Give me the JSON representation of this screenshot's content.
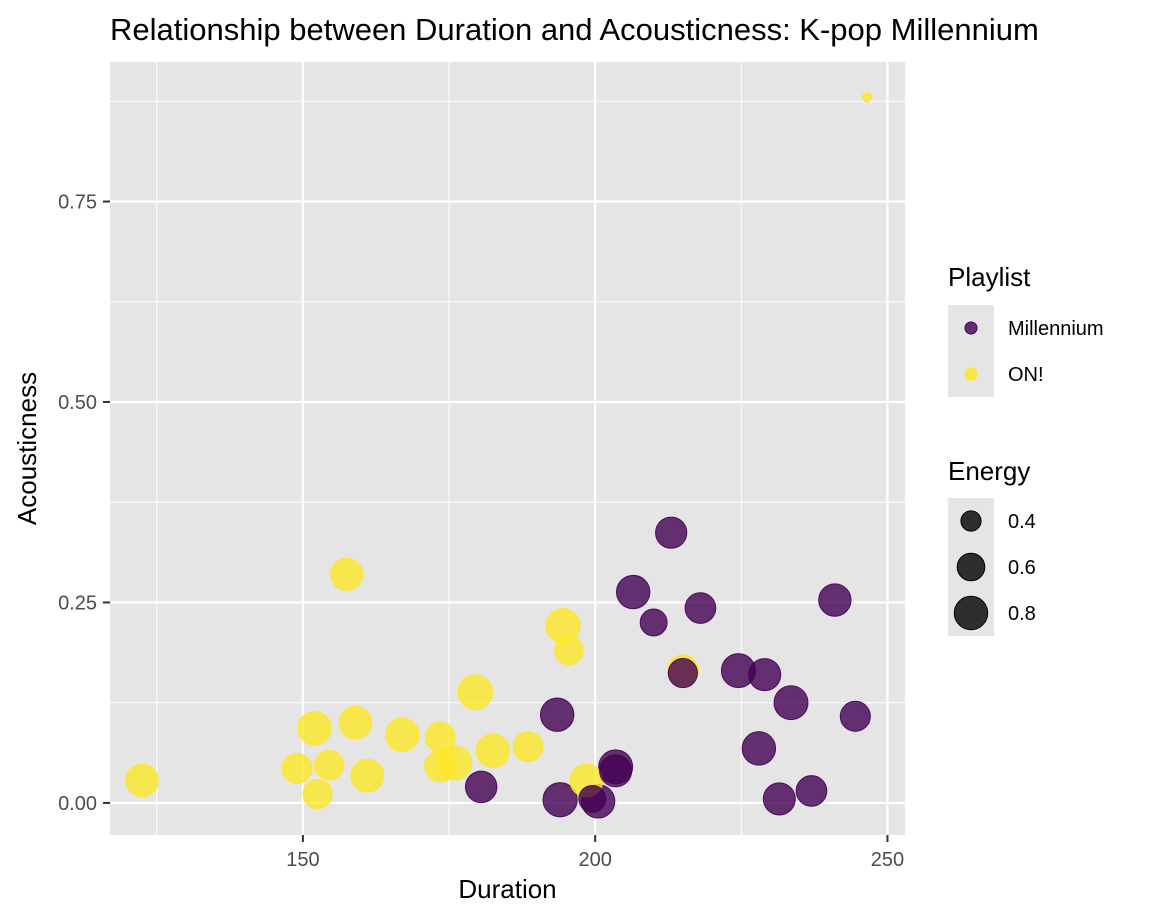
{
  "chart_data": {
    "type": "scatter",
    "title": "Relationship between Duration and Acousticness: K-pop Millennium",
    "xlabel": "Duration",
    "ylabel": "Acousticness",
    "xlim": [
      117,
      253
    ],
    "ylim": [
      -0.04,
      0.924
    ],
    "x_ticks": [
      150,
      200,
      250
    ],
    "y_ticks": [
      0.0,
      0.25,
      0.5,
      0.75
    ],
    "x_tick_labels": [
      "150",
      "200",
      "250"
    ],
    "y_tick_labels": [
      "0.00",
      "0.25",
      "0.50",
      "0.75"
    ],
    "x_minor_ticks": [
      125,
      175,
      225
    ],
    "y_minor_ticks": [
      0.125,
      0.375,
      0.625,
      0.875
    ],
    "grid": true,
    "panel_background": "#e5e5e5",
    "grid_color": "#ffffff",
    "point_alpha": 0.8,
    "color_legend": {
      "title": "Playlist",
      "entries": [
        {
          "label": "Millennium",
          "color": "#440154"
        },
        {
          "label": "ON!",
          "color": "#fde725"
        }
      ]
    },
    "size_legend": {
      "title": "Energy",
      "entries": [
        {
          "label": "0.4",
          "value": 0.4
        },
        {
          "label": "0.6",
          "value": 0.6
        },
        {
          "label": "0.8",
          "value": 0.8
        }
      ]
    },
    "legend_placement": "right",
    "series": [
      {
        "name": "Millennium",
        "color": "#440154",
        "points": [
          {
            "x": 213,
            "y": 0.337,
            "energy": 0.72
          },
          {
            "x": 206.5,
            "y": 0.263,
            "energy": 0.8
          },
          {
            "x": 218,
            "y": 0.243,
            "energy": 0.7
          },
          {
            "x": 210,
            "y": 0.225,
            "energy": 0.58
          },
          {
            "x": 241,
            "y": 0.253,
            "energy": 0.76
          },
          {
            "x": 215,
            "y": 0.162,
            "energy": 0.65
          },
          {
            "x": 224.5,
            "y": 0.165,
            "energy": 0.82
          },
          {
            "x": 229,
            "y": 0.16,
            "energy": 0.75
          },
          {
            "x": 233.5,
            "y": 0.125,
            "energy": 0.82
          },
          {
            "x": 244.5,
            "y": 0.108,
            "energy": 0.68
          },
          {
            "x": 193.5,
            "y": 0.11,
            "energy": 0.8
          },
          {
            "x": 228,
            "y": 0.068,
            "energy": 0.8
          },
          {
            "x": 203.5,
            "y": 0.045,
            "energy": 0.82
          },
          {
            "x": 203.5,
            "y": 0.04,
            "energy": 0.75
          },
          {
            "x": 180.5,
            "y": 0.02,
            "energy": 0.73
          },
          {
            "x": 194,
            "y": 0.004,
            "energy": 0.83
          },
          {
            "x": 200.5,
            "y": 0.002,
            "energy": 0.8
          },
          {
            "x": 199.5,
            "y": 0.005,
            "energy": 0.58
          },
          {
            "x": 231.5,
            "y": 0.005,
            "energy": 0.75
          },
          {
            "x": 237,
            "y": 0.015,
            "energy": 0.7
          }
        ]
      },
      {
        "name": "ON!",
        "color": "#fde725",
        "points": [
          {
            "x": 246.5,
            "y": 0.88,
            "energy": 0.22
          },
          {
            "x": 157.5,
            "y": 0.285,
            "energy": 0.75
          },
          {
            "x": 194.5,
            "y": 0.221,
            "energy": 0.83
          },
          {
            "x": 195.5,
            "y": 0.19,
            "energy": 0.63
          },
          {
            "x": 215,
            "y": 0.165,
            "energy": 0.72
          },
          {
            "x": 179.5,
            "y": 0.138,
            "energy": 0.85
          },
          {
            "x": 152,
            "y": 0.093,
            "energy": 0.8
          },
          {
            "x": 159,
            "y": 0.1,
            "energy": 0.77
          },
          {
            "x": 167,
            "y": 0.085,
            "energy": 0.8
          },
          {
            "x": 173.5,
            "y": 0.082,
            "energy": 0.67
          },
          {
            "x": 188.5,
            "y": 0.07,
            "energy": 0.67
          },
          {
            "x": 182.5,
            "y": 0.065,
            "energy": 0.8
          },
          {
            "x": 173.5,
            "y": 0.046,
            "energy": 0.72
          },
          {
            "x": 176,
            "y": 0.05,
            "energy": 0.83
          },
          {
            "x": 149,
            "y": 0.043,
            "energy": 0.68
          },
          {
            "x": 154.5,
            "y": 0.047,
            "energy": 0.66
          },
          {
            "x": 161,
            "y": 0.034,
            "energy": 0.78
          },
          {
            "x": 152.5,
            "y": 0.011,
            "energy": 0.65
          },
          {
            "x": 198.5,
            "y": 0.028,
            "energy": 0.78
          },
          {
            "x": 122.5,
            "y": 0.028,
            "energy": 0.76
          }
        ]
      }
    ]
  }
}
